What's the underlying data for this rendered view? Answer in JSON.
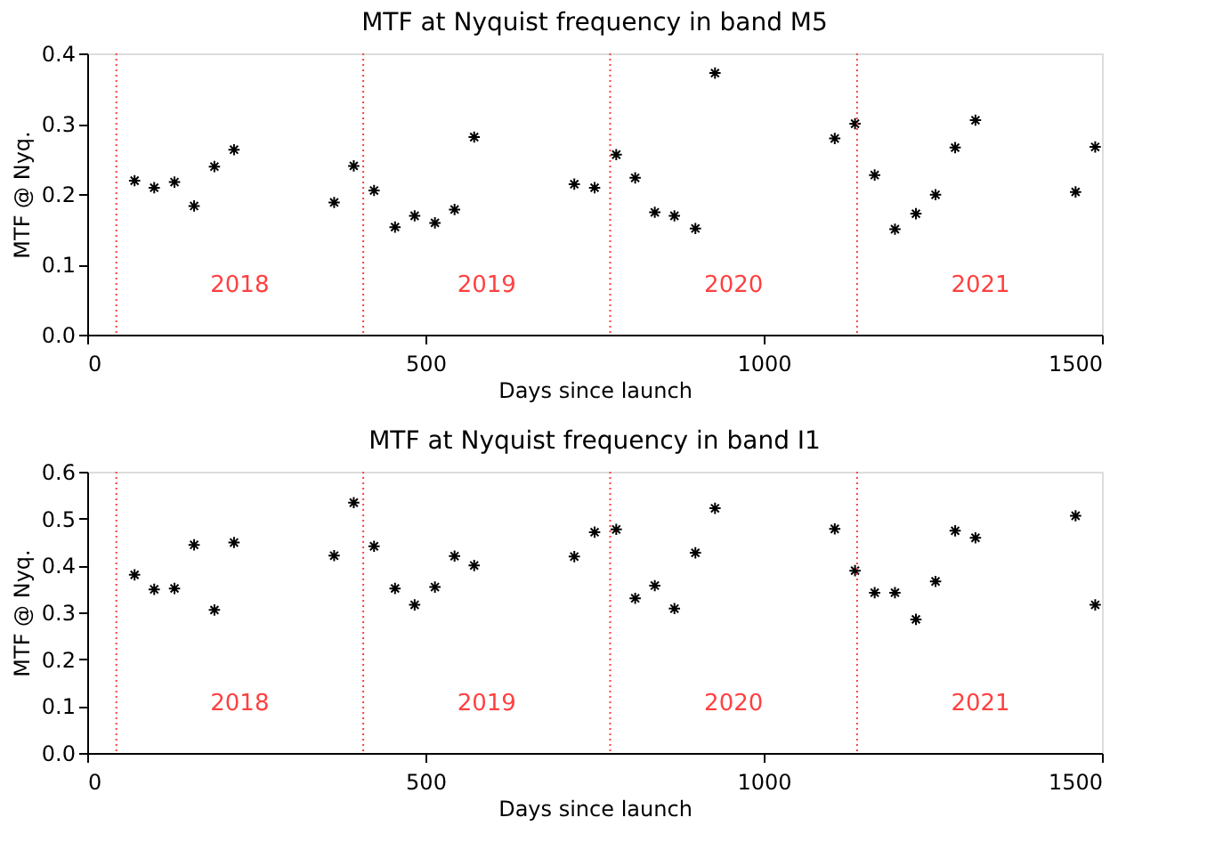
{
  "chart_data": [
    {
      "type": "scatter",
      "title": "MTF at Nyquist frequency in band M5",
      "xlabel": "Days since launch",
      "ylabel": "MTF @ Nyq.",
      "x": [
        70,
        99,
        129,
        158,
        188,
        217,
        365,
        394,
        424,
        455,
        484,
        514,
        543,
        572,
        720,
        750,
        782,
        810,
        839,
        868,
        899,
        928,
        1105,
        1135,
        1164,
        1194,
        1225,
        1254,
        1283,
        1313,
        1461,
        1490
      ],
      "series": [
        {
          "color": "#000000",
          "values": [
            0.219,
            0.209,
            0.217,
            0.183,
            0.239,
            0.263,
            0.188,
            0.24,
            0.205,
            0.153,
            0.169,
            0.159,
            0.178,
            0.281,
            0.214,
            0.209,
            0.256,
            0.223,
            0.174,
            0.169,
            0.151,
            0.372,
            0.279,
            0.3,
            0.227,
            0.15,
            0.172,
            0.199,
            0.266,
            0.305,
            0.203,
            0.267
          ]
        }
      ],
      "xlim": [
        0,
        1500
      ],
      "xticks": [
        0,
        500,
        1000,
        1500
      ],
      "ylim": [
        0,
        0.4
      ],
      "yticks": [
        {
          "value": 0,
          "label": "0.0"
        },
        0.1,
        0.2,
        0.3,
        0.4
      ],
      "ref_lines": [
        {
          "axis": "x",
          "value": 43,
          "color": "#ff4040",
          "line_style": "dotted"
        },
        {
          "axis": "x",
          "value": 408,
          "color": "#ff4040",
          "line_style": "dotted"
        },
        {
          "axis": "x",
          "value": 773,
          "color": "#ff4040",
          "line_style": "dotted"
        },
        {
          "axis": "x",
          "value": 1138,
          "color": "#ff4040",
          "line_style": "dotted"
        }
      ],
      "annotations": [
        "2018",
        "2019",
        "2020",
        "2021"
      ],
      "marker": "cross",
      "grid": false
    },
    {
      "type": "scatter",
      "title": "MTF at Nyquist frequency in band I1",
      "xlabel": "Days since launch",
      "ylabel": "MTF @ Nyq.",
      "x": [
        70,
        99,
        129,
        158,
        188,
        217,
        365,
        394,
        424,
        455,
        484,
        514,
        543,
        572,
        720,
        750,
        782,
        810,
        839,
        868,
        899,
        928,
        1105,
        1135,
        1164,
        1194,
        1225,
        1254,
        1283,
        1313,
        1461,
        1490
      ],
      "series": [
        {
          "color": "#000000",
          "values": [
            0.38,
            0.349,
            0.351,
            0.444,
            0.305,
            0.449,
            0.421,
            0.534,
            0.441,
            0.351,
            0.316,
            0.354,
            0.42,
            0.4,
            0.419,
            0.471,
            0.477,
            0.33,
            0.357,
            0.308,
            0.427,
            0.522,
            0.478,
            0.389,
            0.342,
            0.342,
            0.285,
            0.366,
            0.474,
            0.459,
            0.506,
            0.316
          ]
        }
      ],
      "xlim": [
        0,
        1500
      ],
      "xticks": [
        0,
        500,
        1000,
        1500
      ],
      "ylim": [
        0,
        0.6
      ],
      "yticks": [
        {
          "value": 0,
          "label": "0.0"
        },
        0.1,
        0.2,
        0.3,
        0.4,
        0.5,
        0.6
      ],
      "ref_lines": [
        {
          "axis": "x",
          "value": 43,
          "color": "#ff4040",
          "line_style": "dotted"
        },
        {
          "axis": "x",
          "value": 408,
          "color": "#ff4040",
          "line_style": "dotted"
        },
        {
          "axis": "x",
          "value": 773,
          "color": "#ff4040",
          "line_style": "dotted"
        },
        {
          "axis": "x",
          "value": 1138,
          "color": "#ff4040",
          "line_style": "dotted"
        }
      ],
      "annotations": [
        "2018",
        "2019",
        "2020",
        "2021"
      ],
      "marker": "cross",
      "grid": false
    }
  ]
}
